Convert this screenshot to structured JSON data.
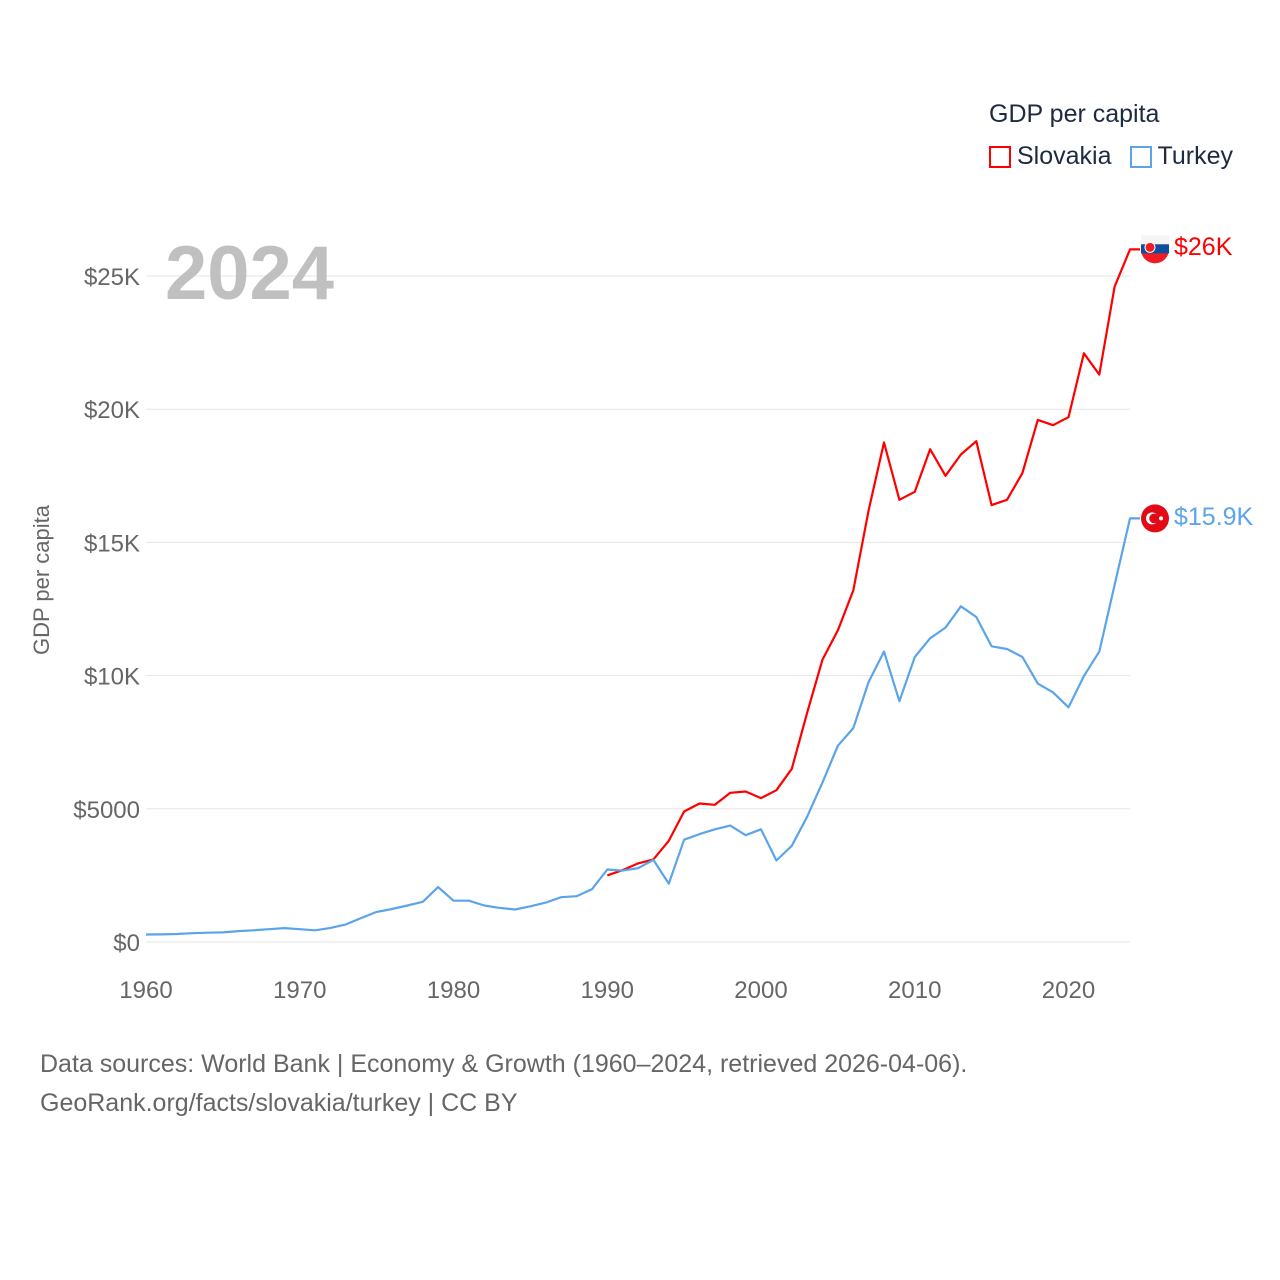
{
  "legend": {
    "title": "GDP per capita",
    "items": [
      {
        "label": "Slovakia",
        "color": "#ff0000"
      },
      {
        "label": "Turkey",
        "color": "#5ba4ea"
      }
    ]
  },
  "year_label": "2024",
  "end_labels": {
    "slovakia": "$26K",
    "turkey": "$15.9K"
  },
  "source": {
    "line1": "Data sources: World Bank | Economy & Growth (1960–2024, retrieved 2026-04-06).",
    "line2": "GeoRank.org/facts/slovakia/turkey | CC BY"
  },
  "chart_data": {
    "type": "line",
    "title": "GDP per capita",
    "xlabel": "",
    "ylabel": "GDP per capita",
    "xlim": [
      1960,
      2024
    ],
    "ylim": [
      0,
      25000
    ],
    "x_ticks": [
      1960,
      1970,
      1980,
      1990,
      2000,
      2010,
      2020
    ],
    "x_tick_labels": [
      "1960",
      "1970",
      "1980",
      "1990",
      "2000",
      "2010",
      "2020"
    ],
    "y_ticks": [
      0,
      5000,
      10000,
      15000,
      20000,
      25000
    ],
    "y_tick_labels": [
      "$0",
      "$5000",
      "$10K",
      "$15K",
      "$20K",
      "$25K"
    ],
    "grid": true,
    "legend_position": "top-right",
    "series": [
      {
        "name": "Slovakia",
        "color": "#ff0000",
        "start": 1990,
        "values": [
          2500,
          2700,
          2950,
          3100,
          3800,
          4900,
          5200,
          5150,
          5600,
          5650,
          5400,
          5700,
          6500,
          8600,
          10600,
          11700,
          13200,
          16200,
          18750,
          16600,
          16900,
          18500,
          17500,
          18300,
          18800,
          16400,
          16600,
          17600,
          19600,
          19400,
          19700,
          22100,
          21300,
          24600,
          26000
        ]
      },
      {
        "name": "Turkey",
        "color": "#5ba4ea",
        "start": 1960,
        "values": [
          280,
          285,
          300,
          330,
          350,
          360,
          410,
          440,
          480,
          520,
          480,
          440,
          530,
          660,
          900,
          1130,
          1240,
          1370,
          1510,
          2060,
          1550,
          1550,
          1370,
          1280,
          1220,
          1340,
          1480,
          1680,
          1720,
          1980,
          2720,
          2680,
          2770,
          3080,
          2190,
          3840,
          4050,
          4230,
          4370,
          4010,
          4230,
          3060,
          3610,
          4700,
          5990,
          7370,
          8030,
          9760,
          10900,
          9040,
          10700,
          11400,
          11800,
          12600,
          12200,
          11100,
          11000,
          10700,
          9700,
          9370,
          8810,
          9980,
          10900,
          13400,
          15900
        ]
      }
    ]
  }
}
